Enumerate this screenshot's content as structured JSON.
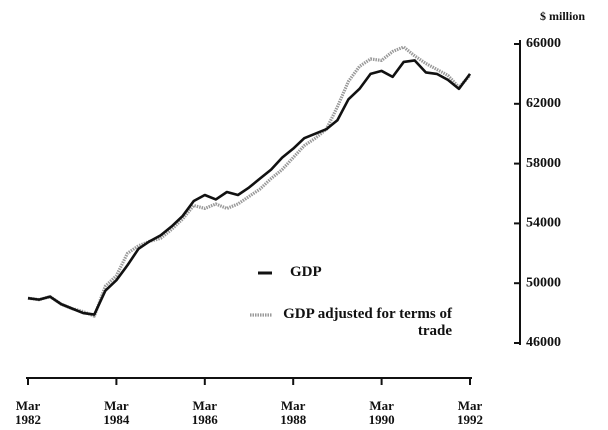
{
  "chart_data": {
    "type": "line",
    "y_label": "$ million",
    "x": [
      1982,
      1982.25,
      1982.5,
      1982.75,
      1983,
      1983.25,
      1983.5,
      1983.75,
      1984,
      1984.25,
      1984.5,
      1984.75,
      1985,
      1985.25,
      1985.5,
      1985.75,
      1986,
      1986.25,
      1986.5,
      1986.75,
      1987,
      1987.25,
      1987.5,
      1987.75,
      1988,
      1988.25,
      1988.5,
      1988.75,
      1989,
      1989.25,
      1989.5,
      1989.75,
      1990,
      1990.25,
      1990.5,
      1990.75,
      1991,
      1991.25,
      1991.5,
      1991.75,
      1992
    ],
    "series": [
      {
        "name": "GDP",
        "color": "#111111",
        "values": [
          49000,
          48900,
          49100,
          48600,
          48300,
          48000,
          47900,
          49500,
          50200,
          51200,
          52300,
          52800,
          53200,
          53800,
          54500,
          55500,
          55900,
          55600,
          56100,
          55900,
          56400,
          57000,
          57600,
          58400,
          59000,
          59700,
          60000,
          60300,
          60900,
          62300,
          63000,
          64000,
          64200,
          63800,
          64800,
          64900,
          64100,
          64000,
          63600,
          63000,
          64000
        ]
      },
      {
        "name": "GDP adjusted for terms of trade",
        "color": "#9a9a9a",
        "values": [
          49000,
          48900,
          49100,
          48600,
          48300,
          48100,
          47800,
          49800,
          50500,
          52000,
          52500,
          52800,
          53000,
          53600,
          54300,
          55200,
          55000,
          55300,
          55000,
          55300,
          55800,
          56300,
          57000,
          57600,
          58400,
          59200,
          59700,
          60300,
          61800,
          63500,
          64500,
          65000,
          64900,
          65500,
          65800,
          65200,
          64700,
          64300,
          63900,
          63100,
          63900
        ]
      }
    ],
    "xlim": [
      1982,
      1992
    ],
    "xticks": [
      {
        "value": 1982,
        "label": "Mar 1982"
      },
      {
        "value": 1984,
        "label": "Mar 1984"
      },
      {
        "value": 1986,
        "label": "Mar 1986"
      },
      {
        "value": 1988,
        "label": "Mar 1988"
      },
      {
        "value": 1990,
        "label": "Mar 1990"
      },
      {
        "value": 1992,
        "label": "Mar 1992"
      }
    ],
    "ylim": [
      46000,
      66000
    ],
    "yticks": [
      46000,
      50000,
      54000,
      58000,
      62000,
      66000
    ],
    "y_axis_side": "right"
  }
}
